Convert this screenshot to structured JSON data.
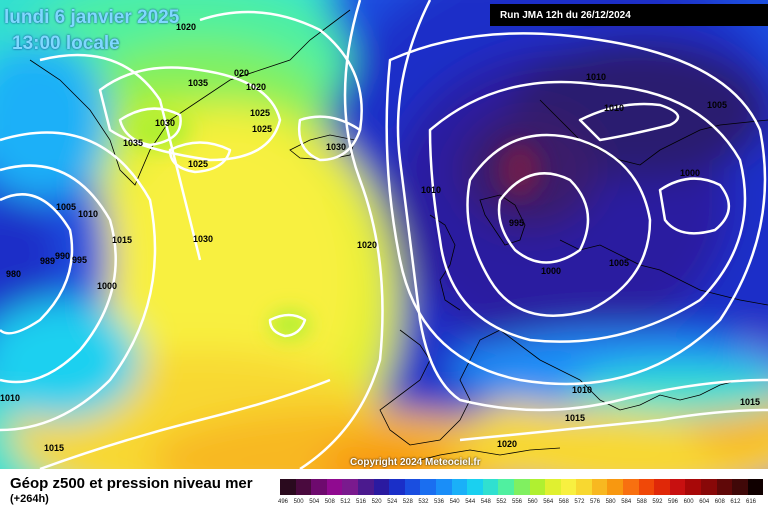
{
  "map": {
    "date": "lundi 6 janvier 2025",
    "time": "13:00 locale",
    "run": "Run JMA 12h du 26/12/2024",
    "copyright": "Copyright 2024 Meteociel.fr"
  },
  "pressure_labels": [
    "1020",
    "1035",
    "020",
    "1020",
    "1025",
    "1030",
    "1025",
    "1035",
    "1030",
    "1025",
    "1005",
    "1010",
    "1015",
    "1030",
    "1020",
    "980",
    "989",
    "990",
    "995",
    "1000",
    "1010",
    "1015",
    "1010",
    "1010",
    "1005",
    "1000",
    "1010",
    "995",
    "1000",
    "1005",
    "1010",
    "1015",
    "1020",
    "1015",
    "1005"
  ],
  "footer": {
    "title": "Géop z500 et pression niveau mer",
    "subtitle": "(+264h)"
  },
  "colorbar": {
    "labels": [
      "496",
      "500",
      "504",
      "508",
      "512",
      "516",
      "520",
      "524",
      "528",
      "532",
      "536",
      "540",
      "544",
      "548",
      "552",
      "556",
      "560",
      "564",
      "568",
      "572",
      "576",
      "580",
      "584",
      "588",
      "592",
      "596",
      "600",
      "604",
      "608",
      "612",
      "616"
    ],
    "colors": [
      "#2a0a1e",
      "#4a0a3e",
      "#6e0a6e",
      "#900a90",
      "#7a1a8e",
      "#4b1a8e",
      "#2a1aa0",
      "#1a2fc8",
      "#1a4ee0",
      "#1a6ef0",
      "#1a8ef8",
      "#1ab0f8",
      "#1ad0f0",
      "#30e0d0",
      "#50f0a0",
      "#80f060",
      "#b0f030",
      "#e0f030",
      "#f8f040",
      "#f8d830",
      "#f8b820",
      "#f89810",
      "#f87010",
      "#f04808",
      "#e02808",
      "#c81010",
      "#a80808",
      "#880808",
      "#600808",
      "#400808",
      "#100000"
    ]
  }
}
